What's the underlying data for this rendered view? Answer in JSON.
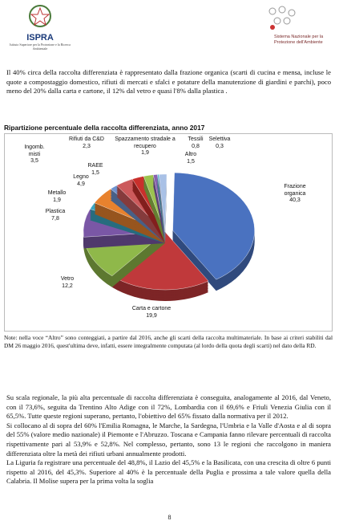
{
  "header": {
    "left_logo": "ISPRA",
    "left_subtitle": "Istituto Superiore per la Protezione e la Ricerca Ambientale",
    "right_logo": "Sistema Nazionale per la Protezione dell'Ambiente"
  },
  "paragraphs_top": [
    "Il 40% circa della raccolta differenziata è rappresentato dalla frazione organica (scarti di cucina e mensa, incluse le quote a compostaggio domestico, rifiuti di mercati e sfalci e potature della manutenzione di giardini e parchi),  poco meno del 20% dalla carta e cartone, il 12% dal vetro e quasi l'8% dalla plastica ."
  ],
  "chart_data": {
    "type": "pie",
    "title": "Ripartizione percentuale della raccolta differenziata, anno 2017",
    "categories": [
      "Frazione organica",
      "Carta e cartone",
      "Vetro",
      "Plastica",
      "Metallo",
      "Legno",
      "RAEE",
      "Ingomb. misti",
      "Rifiuti da C&D",
      "Spazzamento stradale a recupero",
      "Tessili",
      "Selettiva",
      "Altro"
    ],
    "values": [
      40.3,
      19.9,
      12.2,
      7.8,
      1.9,
      4.9,
      1.5,
      3.5,
      2.3,
      1.9,
      0.8,
      0.3,
      1.5
    ],
    "value_labels": [
      "40,3",
      "19,9",
      "12,2",
      "7,8",
      "1,9",
      "4,9",
      "1,5",
      "3,5",
      "2,3",
      "1,9",
      "0,8",
      "0,3",
      "1,5"
    ],
    "colors": [
      "#4a72c0",
      "#c0393b",
      "#8fb84a",
      "#7a57a6",
      "#3aa6c2",
      "#e8822e",
      "#6f93cf",
      "#cc5a5c",
      "#c9302c",
      "#9cc34f",
      "#8a62b0",
      "#56b6d0",
      "#a9c1e6"
    ]
  },
  "note": "Note: nella voce “Altro” sono conteggiati, a partire dal 2016, anche gli scarti della raccolta multimateriale. In base ai criteri stabiliti dal DM 26 maggio 2016, quest'ultima deve, infatti, essere integralmente computata (al lordo della quota degli scarti) nel dato della RD.",
  "paragraphs_bottom": [
    "Su scala regionale, la più alta percentuale di raccolta differenziata è conseguita, analogamente al 2016, dal Veneto, con il 73,6%, seguita da Trentino Alto Adige con il 72%, Lombardia con il 69,6% e Friuli Venezia Giulia con il 65,5%. Tutte queste regioni superano, pertanto, l'obiettivo del 65% fissato dalla normativa per il 2012.",
    "Si collocano al di sopra del 60% l'Emilia Romagna, le Marche, la Sardegna, l'Umbria e la Valle d'Aosta e al di sopra del 55% (valore medio nazionale) il Piemonte e l'Abruzzo. Toscana e Campania fanno rilevare percentuali di raccolta rispettivamente pari al 53,9% e 52,8%.  Nel complesso, pertanto, sono 13 le regioni che raccolgono in maniera differenziata oltre la metà dei rifiuti urbani annualmente prodotti.",
    "La Liguria fa registrare una percentuale del 48,8%, il Lazio del 45,5% e la Basilicata, con una crescita di oltre 6 punti rispetto al 2016, del 45,3%. Superiore al 40% è la percentuale della Puglia e prossima a tale valore quella della Calabria. Il Molise supera per la prima volta la soglia"
  ],
  "page_number": "8"
}
